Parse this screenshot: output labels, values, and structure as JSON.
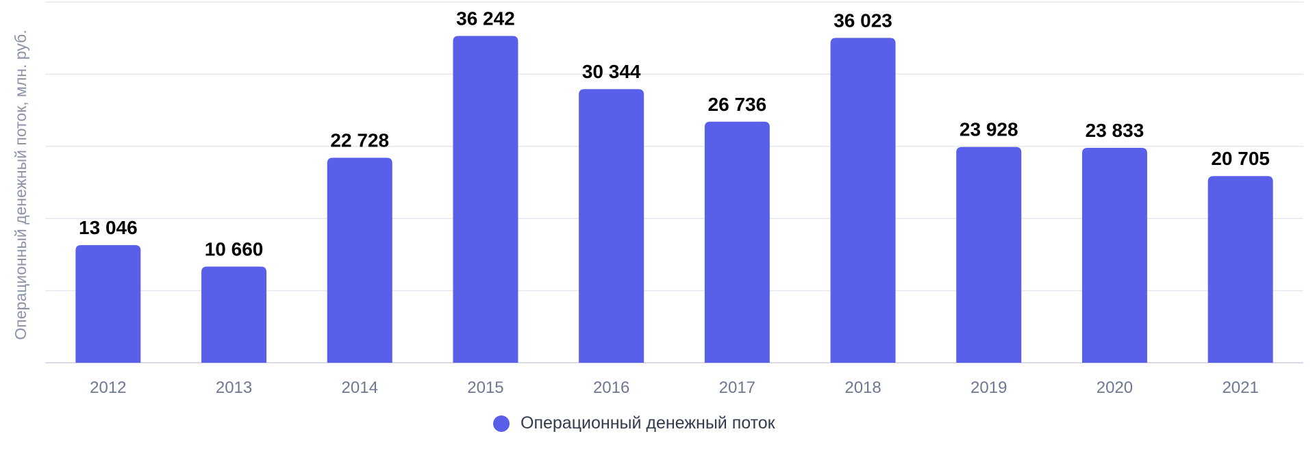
{
  "chart_data": {
    "type": "bar",
    "ylabel": "Операционный денежный поток, млн. руб.",
    "ylim": [
      0,
      40000
    ],
    "grid": true,
    "legend_position": "bottom-center",
    "categories": [
      "2012",
      "2013",
      "2014",
      "2015",
      "2016",
      "2017",
      "2018",
      "2019",
      "2020",
      "2021"
    ],
    "series": [
      {
        "name": "Операционный денежный поток",
        "values": [
          13046,
          10660,
          22728,
          36242,
          30344,
          26736,
          36023,
          23928,
          23833,
          20705
        ],
        "labels": [
          "13 046",
          "10 660",
          "22 728",
          "36 242",
          "30 344",
          "26 736",
          "36 023",
          "23 928",
          "23 833",
          "20 705"
        ],
        "color": "#5a5fea"
      }
    ]
  }
}
